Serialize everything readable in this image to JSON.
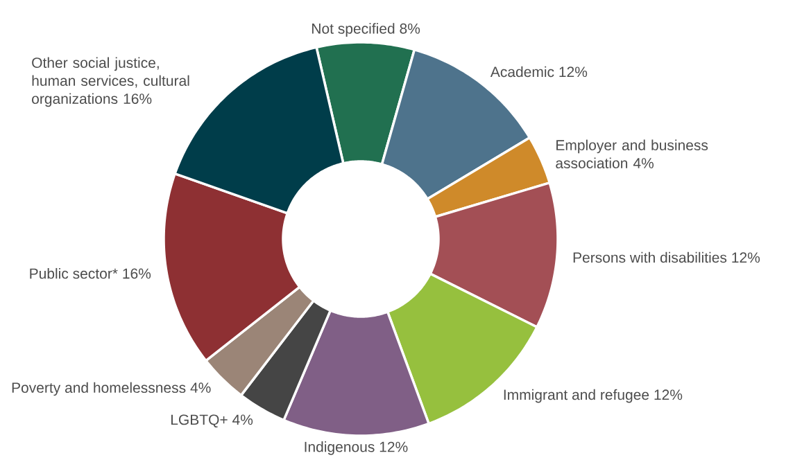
{
  "chart_data": {
    "type": "donut",
    "categories": [
      "Not specified",
      "Academic",
      "Employer and business association",
      "Persons with disabilities",
      "Immigrant and refugee",
      "Indigenous",
      "LGBTQ+",
      "Poverty and homelessness",
      "Public sector*",
      "Other social justice, human services, cultural organizations"
    ],
    "values": [
      8,
      12,
      4,
      12,
      12,
      12,
      4,
      4,
      16,
      16
    ],
    "value_labels": [
      "8%",
      "12%",
      "4%",
      "12%",
      "12%",
      "12%",
      "4%",
      "4%",
      "16%",
      "16%"
    ],
    "colors": [
      "#217050",
      "#4e738c",
      "#cf8a2a",
      "#a34f55",
      "#96c03e",
      "#805f86",
      "#454545",
      "#9b8577",
      "#8e3033",
      "#003d4a"
    ]
  }
}
